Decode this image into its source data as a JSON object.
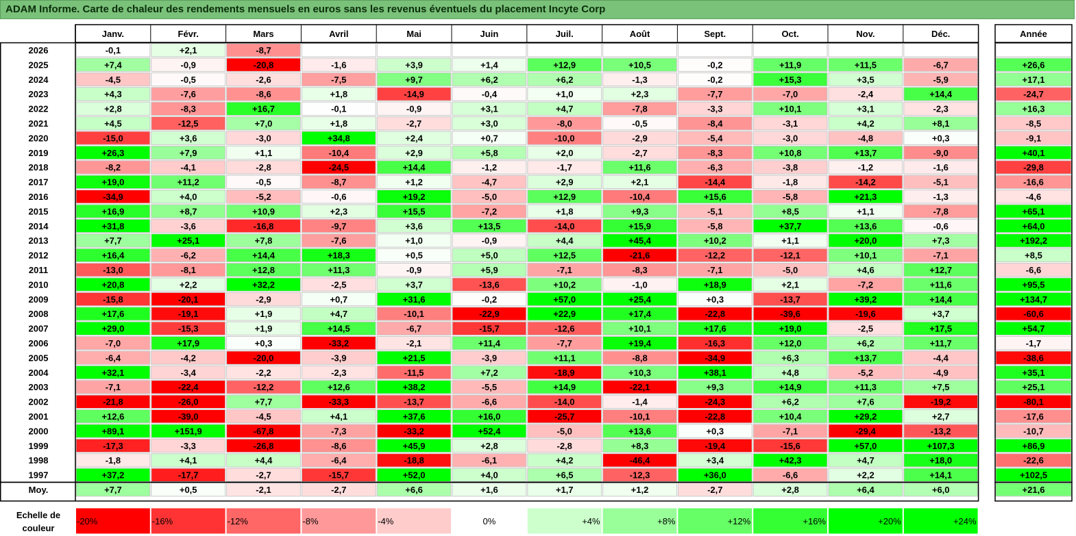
{
  "title": "ADAM Informe. Carte de chaleur des rendements mensuels en euros sans les revenus éventuels du placement Incyte Corp",
  "chart_data": {
    "type": "heatmap",
    "title": "ADAM Informe. Carte de chaleur des rendements mensuels en euros sans les revenus éventuels du placement Incyte Corp",
    "columns": [
      "Janv.",
      "Févr.",
      "Mars",
      "Avril",
      "Mai",
      "Juin",
      "Juil.",
      "Août",
      "Sept.",
      "Oct.",
      "Nov.",
      "Déc."
    ],
    "year_column": "Année",
    "rows": [
      {
        "label": "2026",
        "values": [
          "-0,1",
          "+2,1",
          "-8,7",
          "",
          "",
          "",
          "",
          "",
          "",
          "",
          "",
          ""
        ],
        "year": ""
      },
      {
        "label": "2025",
        "values": [
          "+7,4",
          "-0,9",
          "-20,8",
          "-1,6",
          "+3,9",
          "+1,4",
          "+12,9",
          "+10,5",
          "-0,2",
          "+11,9",
          "+11,5",
          "-6,7"
        ],
        "year": "+26,6"
      },
      {
        "label": "2024",
        "values": [
          "-4,5",
          "-0,5",
          "-2,6",
          "-7,5",
          "+9,7",
          "+6,2",
          "+6,2",
          "-1,3",
          "-0,2",
          "+15,3",
          "+3,5",
          "-5,9"
        ],
        "year": "+17,1"
      },
      {
        "label": "2023",
        "values": [
          "+4,3",
          "-7,6",
          "-8,6",
          "+1,8",
          "-14,9",
          "-0,4",
          "+1,0",
          "+2,3",
          "-7,7",
          "-7,0",
          "-2,4",
          "+14,4"
        ],
        "year": "-24,7"
      },
      {
        "label": "2022",
        "values": [
          "+2,8",
          "-8,3",
          "+16,7",
          "-0,1",
          "-0,9",
          "+3,1",
          "+4,7",
          "-7,8",
          "-3,3",
          "+10,1",
          "+3,1",
          "-2,3"
        ],
        "year": "+16,3"
      },
      {
        "label": "2021",
        "values": [
          "+4,5",
          "-12,5",
          "+7,0",
          "+1,8",
          "-2,7",
          "+3,0",
          "-8,0",
          "-0,5",
          "-8,4",
          "-3,1",
          "+4,2",
          "+8,1"
        ],
        "year": "-8,5"
      },
      {
        "label": "2020",
        "values": [
          "-15,0",
          "+3,6",
          "-3,0",
          "+34,8",
          "+2,4",
          "+0,7",
          "-10,0",
          "-2,9",
          "-5,4",
          "-3,0",
          "-4,8",
          "+0,3"
        ],
        "year": "-9,1"
      },
      {
        "label": "2019",
        "values": [
          "+26,3",
          "+7,9",
          "+1,1",
          "-10,4",
          "+2,9",
          "+5,8",
          "+2,0",
          "-2,7",
          "-8,3",
          "+10,8",
          "+13,7",
          "-9,0"
        ],
        "year": "+40,1"
      },
      {
        "label": "2018",
        "values": [
          "-8,2",
          "-4,1",
          "-2,8",
          "-24,5",
          "+14,4",
          "-1,2",
          "-1,7",
          "+11,6",
          "-6,3",
          "-3,8",
          "-1,2",
          "-1,6"
        ],
        "year": "-29,8"
      },
      {
        "label": "2017",
        "values": [
          "+19,0",
          "+11,2",
          "-0,5",
          "-8,7",
          "+1,2",
          "-4,7",
          "+2,9",
          "+2,1",
          "-14,4",
          "-1,8",
          "-14,2",
          "-5,1"
        ],
        "year": "-16,6"
      },
      {
        "label": "2016",
        "values": [
          "-34,9",
          "+4,0",
          "-5,2",
          "-0,6",
          "+19,2",
          "-5,0",
          "+12,9",
          "-10,4",
          "+15,6",
          "-5,8",
          "+21,3",
          "-1,3"
        ],
        "year": "-4,6"
      },
      {
        "label": "2015",
        "values": [
          "+16,9",
          "+8,7",
          "+10,9",
          "+2,3",
          "+15,5",
          "-7,2",
          "+1,8",
          "+9,3",
          "-5,1",
          "+8,5",
          "+1,1",
          "-7,8"
        ],
        "year": "+65,1"
      },
      {
        "label": "2014",
        "values": [
          "+31,8",
          "-3,6",
          "-16,8",
          "-9,7",
          "+3,6",
          "+13,5",
          "-14,0",
          "+15,9",
          "-5,8",
          "+37,7",
          "+13,6",
          "-0,6"
        ],
        "year": "+64,0"
      },
      {
        "label": "2013",
        "values": [
          "+7,7",
          "+25,1",
          "+7,8",
          "-7,6",
          "+1,0",
          "-0,9",
          "+4,4",
          "+45,4",
          "+10,2",
          "+1,1",
          "+20,0",
          "+7,3"
        ],
        "year": "+192,2"
      },
      {
        "label": "2012",
        "values": [
          "+16,4",
          "-6,2",
          "+14,4",
          "+18,3",
          "+0,5",
          "+5,0",
          "+12,5",
          "-21,6",
          "-12,2",
          "-12,1",
          "+10,1",
          "-7,1"
        ],
        "year": "+8,5"
      },
      {
        "label": "2011",
        "values": [
          "-13,0",
          "-8,1",
          "+12,8",
          "+11,3",
          "-0,9",
          "+5,9",
          "-7,1",
          "-8,3",
          "-7,1",
          "-5,0",
          "+4,6",
          "+12,7"
        ],
        "year": "-6,6"
      },
      {
        "label": "2010",
        "values": [
          "+20,8",
          "+2,2",
          "+32,2",
          "-2,5",
          "+3,7",
          "-13,6",
          "+10,2",
          "-1,0",
          "+18,9",
          "+2,1",
          "-7,2",
          "+11,6"
        ],
        "year": "+95,5"
      },
      {
        "label": "2009",
        "values": [
          "-15,8",
          "-20,1",
          "-2,9",
          "+0,7",
          "+31,6",
          "-0,2",
          "+57,0",
          "+25,4",
          "+0,3",
          "-13,7",
          "+39,2",
          "+14,4"
        ],
        "year": "+134,7"
      },
      {
        "label": "2008",
        "values": [
          "+17,6",
          "-19,1",
          "+1,9",
          "+4,7",
          "-10,1",
          "-22,9",
          "+22,9",
          "+17,4",
          "-22,8",
          "-39,6",
          "-19,6",
          "+3,7"
        ],
        "year": "-60,6"
      },
      {
        "label": "2007",
        "values": [
          "+29,0",
          "-15,3",
          "+1,9",
          "+14,5",
          "-6,7",
          "-15,7",
          "-12,6",
          "+10,1",
          "+17,6",
          "+19,0",
          "-2,5",
          "+17,5"
        ],
        "year": "+54,7"
      },
      {
        "label": "2006",
        "values": [
          "-7,0",
          "+17,9",
          "+0,3",
          "-33,2",
          "-2,1",
          "+11,4",
          "-7,7",
          "+19,4",
          "-16,3",
          "+12,0",
          "+6,2",
          "+11,7"
        ],
        "year": "-1,7"
      },
      {
        "label": "2005",
        "values": [
          "-6,4",
          "-4,2",
          "-20,0",
          "-3,9",
          "+21,5",
          "-3,9",
          "+11,1",
          "-8,8",
          "-34,9",
          "+6,3",
          "+13,7",
          "-4,4"
        ],
        "year": "-38,6"
      },
      {
        "label": "2004",
        "values": [
          "+32,1",
          "-3,4",
          "-2,2",
          "-2,3",
          "-11,5",
          "+7,2",
          "-18,9",
          "+10,3",
          "+38,1",
          "+4,8",
          "-5,2",
          "-4,9"
        ],
        "year": "+35,1"
      },
      {
        "label": "2003",
        "values": [
          "-7,1",
          "-22,4",
          "-12,2",
          "+12,6",
          "+38,2",
          "-5,5",
          "+14,9",
          "-22,1",
          "+9,3",
          "+14,9",
          "+11,3",
          "+7,5"
        ],
        "year": "+25,1"
      },
      {
        "label": "2002",
        "values": [
          "-21,8",
          "-26,0",
          "+7,7",
          "-33,3",
          "-13,7",
          "-6,6",
          "-14,0",
          "-1,4",
          "-24,3",
          "+6,2",
          "+7,6",
          "-19,2"
        ],
        "year": "-80,1"
      },
      {
        "label": "2001",
        "values": [
          "+12,6",
          "-39,0",
          "-4,5",
          "+4,1",
          "+37,6",
          "+16,0",
          "-25,7",
          "-10,1",
          "-22,8",
          "+10,4",
          "+29,2",
          "+2,7"
        ],
        "year": "-17,6"
      },
      {
        "label": "2000",
        "values": [
          "+89,1",
          "+151,9",
          "-67,8",
          "-7,3",
          "-33,2",
          "+52,4",
          "-5,0",
          "+13,6",
          "+0,3",
          "-7,1",
          "-29,4",
          "-13,2"
        ],
        "year": "-10,7"
      },
      {
        "label": "1999",
        "values": [
          "-17,3",
          "-3,3",
          "-26,8",
          "-8,6",
          "+45,9",
          "+2,8",
          "-2,8",
          "+8,3",
          "-19,4",
          "-15,6",
          "+57,0",
          "+107,3"
        ],
        "year": "+86,9"
      },
      {
        "label": "1998",
        "values": [
          "-1,8",
          "+4,1",
          "+4,4",
          "-6,4",
          "-18,8",
          "-6,1",
          "+4,2",
          "-46,4",
          "+3,4",
          "+42,3",
          "+4,7",
          "+18,0"
        ],
        "year": "-22,6"
      },
      {
        "label": "1997",
        "values": [
          "+37,2",
          "-17,7",
          "-2,7",
          "-15,7",
          "+52,0",
          "+4,0",
          "+6,5",
          "-12,3",
          "+36,0",
          "-6,6",
          "+2,2",
          "+14,1"
        ],
        "year": "+102,5"
      }
    ],
    "average_row": {
      "label": "Moy.",
      "values": [
        "+7,7",
        "+0,5",
        "-2,1",
        "-2,7",
        "+6,6",
        "+1,6",
        "+1,7",
        "+1,2",
        "-2,7",
        "+2,8",
        "+6,4",
        "+6,0"
      ],
      "year": "+21,6"
    },
    "color_scale": {
      "title_lines": [
        "Echelle de",
        "couleur"
      ],
      "stops": [
        "-20%",
        "-16%",
        "-12%",
        "-8%",
        "-4%",
        "0%",
        "+4%",
        "+8%",
        "+12%",
        "+16%",
        "+20%",
        "+24%"
      ],
      "stop_values": [
        -20,
        -16,
        -12,
        -8,
        -4,
        0,
        4,
        8,
        12,
        16,
        20,
        24
      ]
    },
    "colors": {
      "negative": "#ff0000",
      "positive": "#00ff00",
      "neutral": "#ffffff",
      "title_bar": "#7ac17a"
    }
  }
}
